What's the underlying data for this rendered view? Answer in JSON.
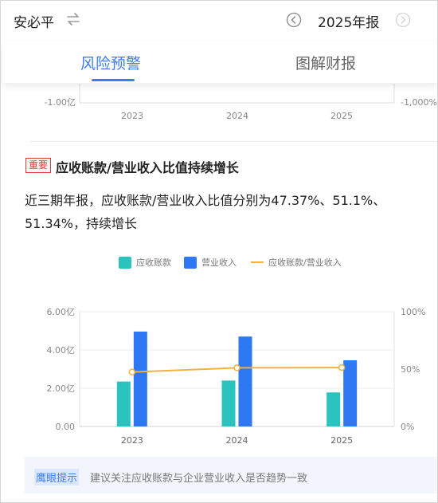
{
  "header": {
    "company": "安必平",
    "report_title": "2025年报",
    "icons": {
      "swap": "swap-icon",
      "prev": "chevron-left-circle-icon",
      "next": "chevron-right-circle-icon"
    }
  },
  "tabs": [
    {
      "label": "风险预警",
      "active": true
    },
    {
      "label": "图解财报",
      "active": false
    }
  ],
  "prev_chart": {
    "left_tick": "-1.00亿",
    "right_tick": "-1,000%",
    "years": [
      "2023",
      "2024",
      "2025"
    ]
  },
  "alert": {
    "badge": "重要",
    "title": "应收账款/营业收入比值持续增长",
    "description": "近三期年报，应收账款/营业收入比值分别为47.37%、51.1%、51.34%，持续增长"
  },
  "chart_data": {
    "type": "bar",
    "categories": [
      "2023",
      "2024",
      "2025"
    ],
    "series": [
      {
        "name": "应收账款",
        "type": "bar",
        "axis": "left",
        "color": "#2bc3bd",
        "values": [
          2.35,
          2.4,
          1.78
        ]
      },
      {
        "name": "营业收入",
        "type": "bar",
        "axis": "left",
        "color": "#2f78f4",
        "values": [
          4.96,
          4.7,
          3.46
        ]
      },
      {
        "name": "应收账款/营业收入",
        "type": "line",
        "axis": "right",
        "color": "#f5b13d",
        "values": [
          47.37,
          51.1,
          51.34
        ]
      }
    ],
    "y_left": {
      "range": [
        0,
        6
      ],
      "ticks": [
        "0.00",
        "2.00亿",
        "4.00亿",
        "6.00亿"
      ]
    },
    "y_right": {
      "range": [
        0,
        100
      ],
      "ticks": [
        "0%",
        "50%",
        "100%"
      ]
    },
    "legend_position": "top-center",
    "grid": true
  },
  "tip": {
    "label": "鹰眼提示",
    "text": "建议关注应收账款与企业营业收入是否趋势一致"
  }
}
